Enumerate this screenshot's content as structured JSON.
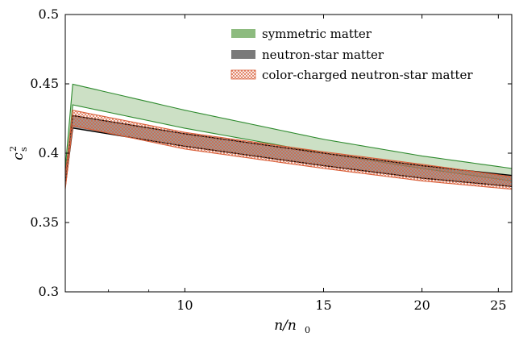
{
  "chart_data": {
    "type": "area",
    "title": "",
    "xlabel": "n/n",
    "xlabel_sub": "0",
    "ylabel": "c",
    "ylabel_sup": "2",
    "ylabel_sub": "s",
    "x_scale": "log",
    "xlim": [
      7.05,
      26.0
    ],
    "ylim": [
      0.3,
      0.5
    ],
    "x_ticks": [
      10,
      15,
      20,
      25
    ],
    "y_ticks": [
      0.3,
      0.35,
      0.4,
      0.45,
      0.5
    ],
    "x_tick_labels": [
      "10",
      "15",
      "20",
      "25"
    ],
    "y_tick_labels": [
      "0.3",
      "0.35",
      "0.4",
      "0.45",
      "0.5"
    ],
    "grid": false,
    "legend_position": "top-right",
    "series": [
      {
        "name": "symmetric matter",
        "style": "filled-band",
        "fill_color": "#8dbb7f",
        "edge_color": "#2e8a2e",
        "x": [
          7.05,
          10,
          15,
          20,
          26
        ],
        "upper": [
          0.451,
          0.431,
          0.41,
          0.398,
          0.389
        ],
        "lower": [
          0.436,
          0.418,
          0.4,
          0.389,
          0.38
        ]
      },
      {
        "name": "neutron-star matter",
        "style": "filled-band",
        "fill_color": "#7a7a7a",
        "edge_color": "#000000",
        "x": [
          7.05,
          10,
          15,
          20,
          26
        ],
        "upper": [
          0.428,
          0.414,
          0.4,
          0.391,
          0.384
        ],
        "lower": [
          0.419,
          0.405,
          0.391,
          0.382,
          0.376
        ]
      },
      {
        "name": "color-charged neutron-star matter",
        "style": "hatched-band",
        "fill_color": "#d9603b",
        "edge_color": "#d9603b",
        "x": [
          7.05,
          10,
          15,
          20,
          26
        ],
        "upper": [
          0.432,
          0.415,
          0.401,
          0.392,
          0.383
        ],
        "lower": [
          0.421,
          0.403,
          0.389,
          0.38,
          0.374
        ]
      }
    ]
  }
}
